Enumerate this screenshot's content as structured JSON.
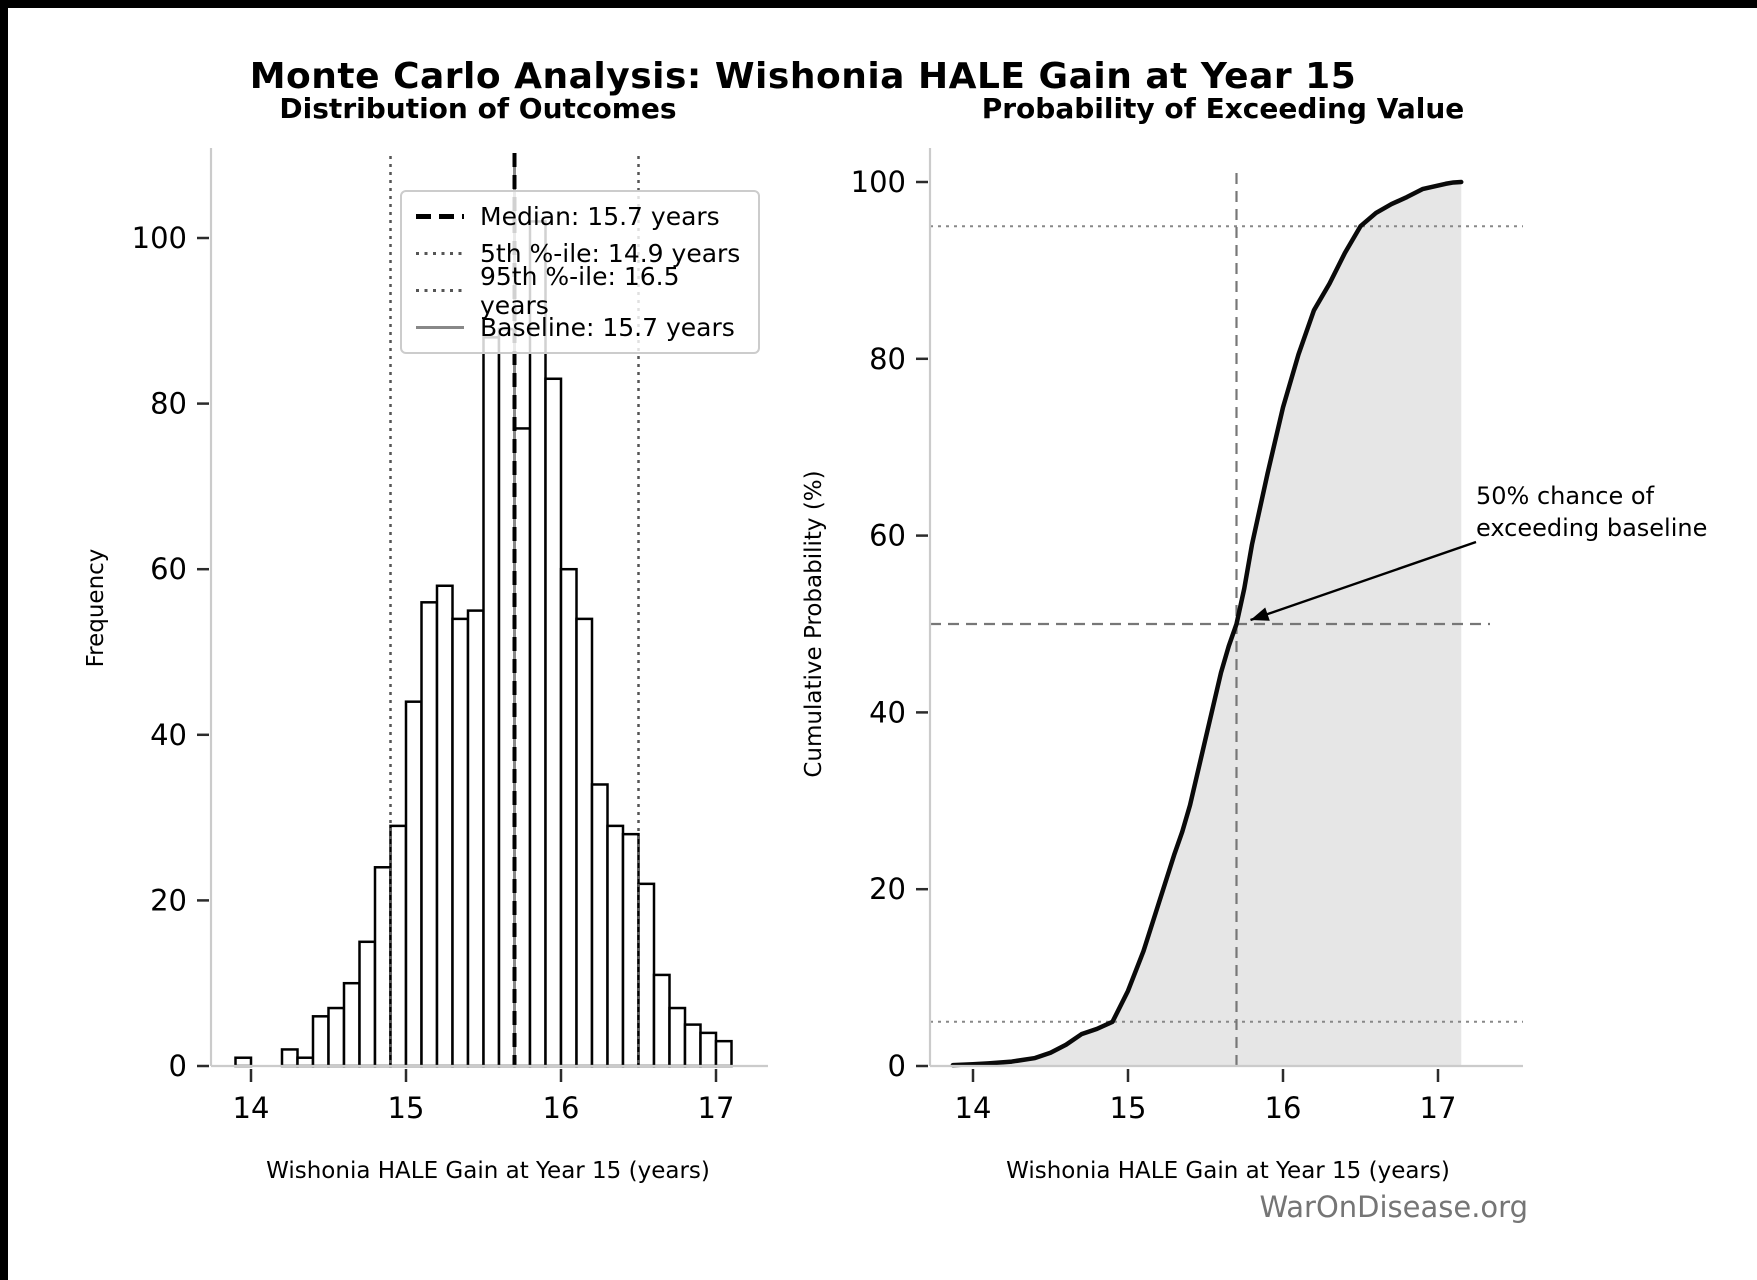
{
  "page": {
    "suptitle": "Monte Carlo Analysis: Wishonia HALE Gain at Year 15"
  },
  "legend": {
    "items": [
      {
        "label": "Median: 15.7 years",
        "style": "dashed-black"
      },
      {
        "label": "5th %-ile: 14.9 years",
        "style": "dotted-gray"
      },
      {
        "label": "95th %-ile: 16.5 years",
        "style": "dotted-gray"
      },
      {
        "label": "Baseline: 15.7 years",
        "style": "solid-gray"
      }
    ]
  },
  "annotation": {
    "text": "50% chance of\nexceeding baseline"
  },
  "footer": {
    "watermark": "WarOnDisease.org"
  },
  "colors": {
    "bar_fill": "#ffffff",
    "bar_edge": "#000000",
    "median_line": "#000000",
    "baseline_line": "#8a8a8a",
    "percentile_dotted": "#555555",
    "cdf_line": "#0a0a0a",
    "cdf_fill": "#e6e6e6",
    "guide_dashed": "#777777",
    "guide_dotted": "#888888",
    "spine": "#cbcbcb",
    "tick": "#2b2b2b",
    "watermark_gray": "#757575"
  },
  "chart_data": [
    {
      "type": "bar",
      "subtype": "histogram",
      "title": "Distribution of Outcomes",
      "xlabel": "Wishonia HALE Gain at Year 15 (years)",
      "ylabel": "Frequency",
      "bin_start": 13.9,
      "bin_width": 0.1,
      "counts": [
        1,
        0,
        0,
        2,
        1,
        6,
        7,
        10,
        15,
        24,
        29,
        44,
        56,
        58,
        54,
        55,
        88,
        89,
        77,
        102,
        83,
        60,
        54,
        34,
        29,
        28,
        22,
        11,
        7,
        5,
        4,
        3
      ],
      "xticks": [
        14,
        15,
        16,
        17
      ],
      "yticks": [
        0,
        20,
        40,
        60,
        80,
        100
      ],
      "xlim": [
        13.74,
        17.33
      ],
      "ylim": [
        0,
        111
      ],
      "markers": {
        "median": 15.7,
        "p5": 14.9,
        "p95": 16.5,
        "baseline": 15.7
      },
      "legend_position": "upper-center"
    },
    {
      "type": "line",
      "subtype": "empirical-cdf",
      "title": "Probability of Exceeding Value",
      "xlabel": "Wishonia HALE Gain at Year 15 (years)",
      "ylabel": "Cumulative Probability (%)",
      "points": [
        [
          13.87,
          0.1
        ],
        [
          14.0,
          0.2
        ],
        [
          14.1,
          0.3
        ],
        [
          14.25,
          0.5
        ],
        [
          14.4,
          0.9
        ],
        [
          14.5,
          1.5
        ],
        [
          14.6,
          2.4
        ],
        [
          14.7,
          3.6
        ],
        [
          14.8,
          4.2
        ],
        [
          14.9,
          5
        ],
        [
          15.0,
          8.5
        ],
        [
          15.1,
          13
        ],
        [
          15.2,
          18.5
        ],
        [
          15.3,
          24
        ],
        [
          15.35,
          26.5
        ],
        [
          15.4,
          29.5
        ],
        [
          15.5,
          37
        ],
        [
          15.6,
          44.5
        ],
        [
          15.65,
          47.5
        ],
        [
          15.7,
          50
        ],
        [
          15.75,
          54
        ],
        [
          15.8,
          59
        ],
        [
          15.9,
          67
        ],
        [
          16.0,
          74.5
        ],
        [
          16.05,
          77.5
        ],
        [
          16.1,
          80.5
        ],
        [
          16.2,
          85.5
        ],
        [
          16.3,
          88.5
        ],
        [
          16.4,
          92
        ],
        [
          16.5,
          95
        ],
        [
          16.6,
          96.5
        ],
        [
          16.7,
          97.5
        ],
        [
          16.8,
          98.3
        ],
        [
          16.9,
          99.2
        ],
        [
          17.0,
          99.6
        ],
        [
          17.05,
          99.8
        ],
        [
          17.1,
          99.95
        ],
        [
          17.15,
          100
        ]
      ],
      "xticks": [
        14,
        15,
        16,
        17
      ],
      "yticks": [
        0,
        20,
        40,
        60,
        80,
        100
      ],
      "xlim": [
        13.72,
        17.55
      ],
      "ylim": [
        0,
        100
      ],
      "fill_under_curve": true,
      "fill_right_edge": 17.15,
      "guides": {
        "h_dotted": [
          5,
          95
        ],
        "h_dashed": 50,
        "v_dashed": 15.7
      }
    }
  ]
}
